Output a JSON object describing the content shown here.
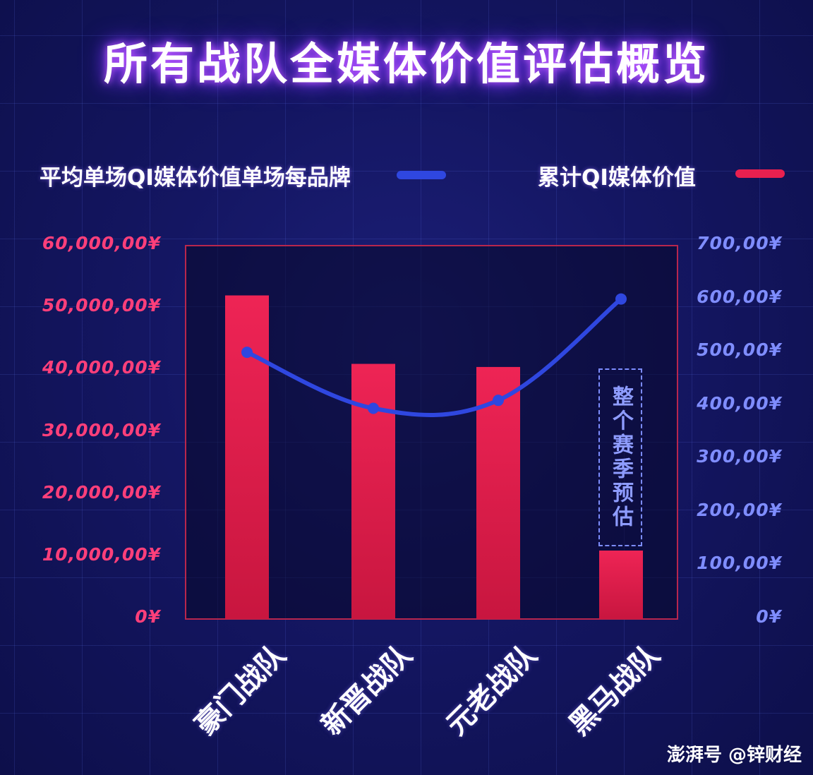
{
  "title": "所有战队全媒体价值评估概览",
  "legend": {
    "line_label": "平均单场QI媒体价值单场每品牌",
    "bar_label": "累计QI媒体价值"
  },
  "colors": {
    "bar": "#e8204f",
    "line": "#2f47e0",
    "left_axis": "#ff3f7a",
    "right_axis": "#7f8dff",
    "plot_border": "#b8264d"
  },
  "chart_data": {
    "type": "bar",
    "categories": [
      "豪门战队",
      "新晋战队",
      "元老战队",
      "黑马战队"
    ],
    "series": [
      {
        "name": "累计QI媒体价值",
        "type": "bar",
        "axis": "left",
        "values": [
          52000000,
          41000000,
          40500000,
          11000000
        ]
      },
      {
        "name": "平均单场QI媒体价值单场每品牌",
        "type": "line",
        "axis": "right",
        "values": [
          500,
          395,
          410,
          600
        ]
      }
    ],
    "left_ticks": [
      "0¥",
      "10,000,00¥",
      "20,000,00¥",
      "30,000,00¥",
      "40,000,00¥",
      "50,000,00¥",
      "60,000,00¥"
    ],
    "right_ticks": [
      "0¥",
      "100,00¥",
      "200,00¥",
      "300,00¥",
      "400,00¥",
      "500,00¥",
      "600,00¥",
      "700,00¥"
    ],
    "left_ylim": [
      0,
      60000000
    ],
    "right_ylim": [
      0,
      700
    ],
    "annotation": "整个赛季预估"
  },
  "watermark": "澎湃号 @锌财经"
}
